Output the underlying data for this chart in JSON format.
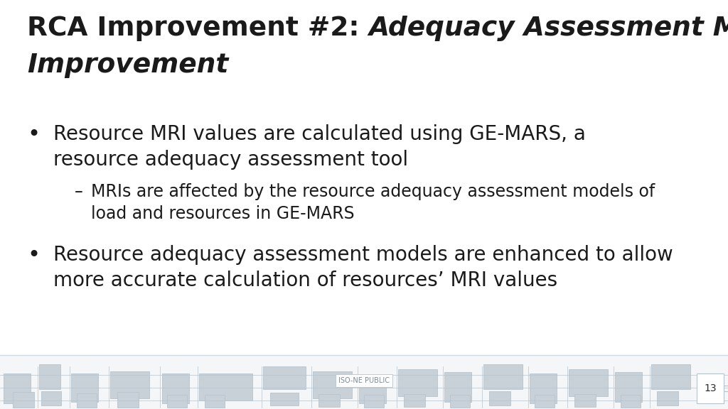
{
  "title_normal": "RCA Improvement #2: ",
  "title_italic_line1": "Adequacy Assessment Model",
  "title_italic_line2": "Improvement",
  "title_fontsize": 27,
  "bullet1_main": "Resource MRI values are calculated using GE-MARS, a\nresource adequacy assessment tool",
  "bullet1_sub": "MRIs are affected by the resource adequacy assessment models of\nload and resources in GE-MARS",
  "bullet2_main": "Resource adequacy assessment models are enhanced to allow\nmore accurate calculation of resources’ MRI values",
  "bullet_fontsize": 20,
  "sub_bullet_fontsize": 17,
  "footer_text": "ISO-NE PUBLIC",
  "page_number": "13",
  "bg_color": "#ffffff",
  "text_color": "#1a1a1a",
  "footer_bg": "#f4f6f8",
  "footer_color": "#c8d0d8",
  "footer_line_color": "#b8c4cc",
  "footer_text_color": "#7a8a96",
  "page_num_color": "#2a2a2a"
}
